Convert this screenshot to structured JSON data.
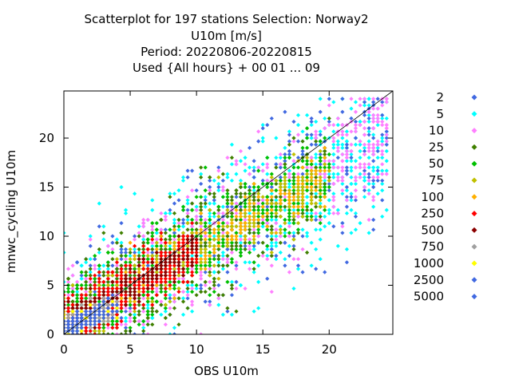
{
  "title_lines": [
    "Scatterplot for  197 stations Selection: Norway2",
    "U10m [m/s]",
    "Period: 20220806-20220815",
    "Used {All hours} + 00 01 ... 09"
  ],
  "chart_data": {
    "type": "scatter",
    "title": "Scatterplot for  197 stations Selection: Norway2",
    "xlabel": "OBS U10m",
    "ylabel": "mnwc_cycling U10m",
    "xlim": [
      0,
      24.8
    ],
    "ylim": [
      0,
      24.8
    ],
    "xticks": [
      "0",
      "5",
      "10",
      "15",
      "20"
    ],
    "yticks": [
      "0",
      "5",
      "10",
      "15",
      "20"
    ],
    "grid": false,
    "legend_position": "right",
    "reference_line": "y = x",
    "legend_title": "",
    "series": [
      {
        "name": "2",
        "color": "#4169e1"
      },
      {
        "name": "5",
        "color": "#00ffff"
      },
      {
        "name": "10",
        "color": "#ff80ff"
      },
      {
        "name": "25",
        "color": "#408000"
      },
      {
        "name": "50",
        "color": "#00c000"
      },
      {
        "name": "75",
        "color": "#c0c000"
      },
      {
        "name": "100",
        "color": "#ffb000"
      },
      {
        "name": "250",
        "color": "#ff0000"
      },
      {
        "name": "500",
        "color": "#8b0000"
      },
      {
        "name": "750",
        "color": "#a0a0a0"
      },
      {
        "name": "1000",
        "color": "#ffff00"
      },
      {
        "name": "2500",
        "color": "#4169e1"
      },
      {
        "name": "5000",
        "color": "#4169e1"
      }
    ]
  }
}
